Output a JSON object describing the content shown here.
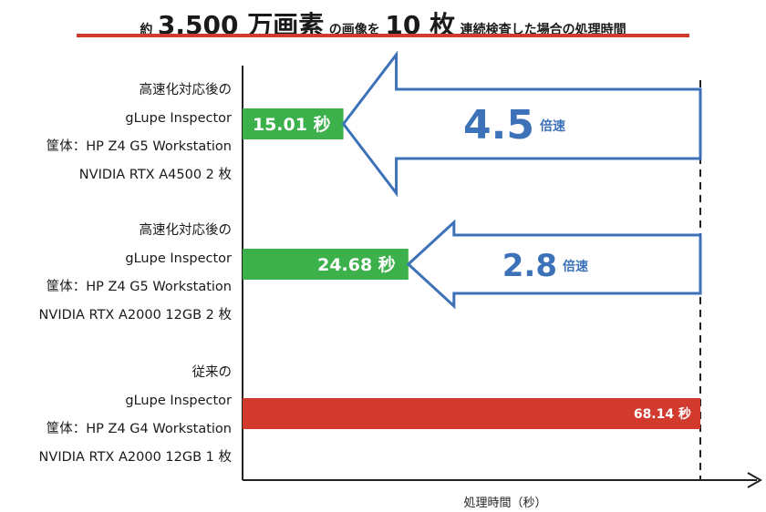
{
  "title": {
    "p1": "約",
    "p2": "3,500 万画素",
    "p3": "の画像を",
    "p4": "10 枚",
    "p5": "連続検査した場合の処理時間"
  },
  "chart_data": {
    "type": "bar",
    "orientation": "horizontal",
    "xlabel": "処理時間（秒）",
    "xlim": [
      0,
      68.14
    ],
    "categories": [
      [
        "高速化対応後の",
        "gLupe Inspector",
        "筐体：HP Z4 G5 Workstation",
        "NVIDIA RTX A4500 2 枚"
      ],
      [
        "高速化対応後の",
        "gLupe Inspector",
        "筐体：HP Z4 G5 Workstation",
        "NVIDIA RTX A2000 12GB 2 枚"
      ],
      [
        "従来の",
        "gLupe Inspector",
        "筐体：HP Z4 G4 Workstation",
        "NVIDIA RTX A2000 12GB 1 枚"
      ]
    ],
    "values": [
      15.01,
      24.68,
      68.14
    ],
    "value_labels": [
      "15.01 秒",
      "24.68 秒",
      "68.14 秒"
    ],
    "bar_colors": [
      "#3cb04a",
      "#3cb04a",
      "#d23a2e"
    ],
    "speedups": [
      {
        "value": "4.5",
        "unit": "倍速"
      },
      {
        "value": "2.8",
        "unit": "倍速"
      }
    ],
    "colors": {
      "accent": "#3d72b8",
      "title_rule": "#d23a2e"
    }
  }
}
